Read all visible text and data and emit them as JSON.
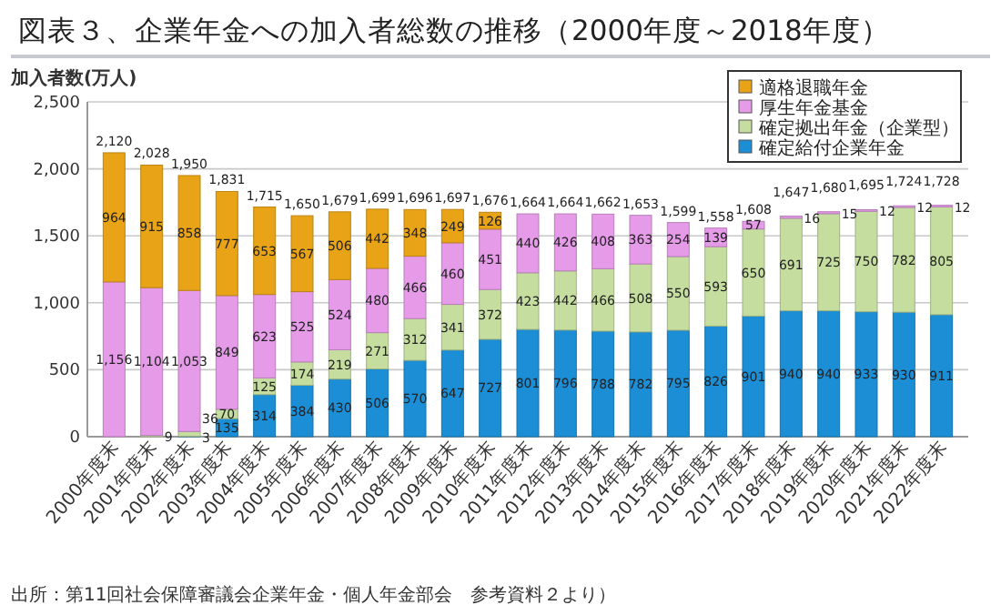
{
  "chart_data": {
    "type": "bar",
    "title": "図表３、企業年金への加入者総数の推移（2000年度～2018年度）",
    "ylabel": "加入者数(万人)",
    "annotations": [
      "出所：第11回社会保障審議会企業年金・個人年金部会　参考資料２より）"
    ],
    "categories": [
      "2000年度末",
      "2001年度末",
      "2002年度末",
      "2003年度末",
      "2004年度末",
      "2005年度末",
      "2006年度末",
      "2007年度末",
      "2008年度末",
      "2009年度末",
      "2010年度末",
      "2011年度末",
      "2012年度末",
      "2013年度末",
      "2014年度末",
      "2015年度末",
      "2016年度末",
      "2017年度末",
      "2018年度末",
      "2019年度末",
      "2020年度末",
      "2021年度末",
      "2022年度末"
    ],
    "stacked": true,
    "grid": "y",
    "legend": "top right",
    "ylim": [
      0,
      2500
    ],
    "yticks": [
      0,
      {
        "value": 500,
        "label": "500"
      },
      {
        "value": 1000,
        "label": "1,000"
      },
      {
        "value": 1500,
        "label": "1,500"
      },
      {
        "value": 2000,
        "label": "2,000"
      },
      {
        "value": 2500,
        "label": "2,500"
      }
    ],
    "series": [
      {
        "name": "確定給付企業年金",
        "color": "#1b8ed6",
        "values": [
          null,
          null,
          3,
          135,
          314,
          384,
          430,
          506,
          570,
          647,
          727,
          801,
          796,
          788,
          782,
          795,
          826,
          901,
          940,
          940,
          933,
          930,
          911
        ],
        "value_labels": [
          null,
          null,
          "3",
          "135",
          "314",
          "384",
          "430",
          "506",
          "570",
          "647",
          "727",
          "801",
          "796",
          "788",
          "782",
          "795",
          "826",
          "901",
          "940",
          "940",
          "933",
          "930",
          "911"
        ]
      },
      {
        "name": "確定拠出年金（企業型）",
        "color": "#c5dea0",
        "values": [
          null,
          9,
          36,
          70,
          125,
          174,
          219,
          271,
          312,
          341,
          372,
          423,
          442,
          466,
          508,
          550,
          593,
          650,
          691,
          725,
          750,
          782,
          805
        ],
        "value_labels": [
          null,
          "9",
          "36",
          "70",
          "125",
          "174",
          "219",
          "271",
          "312",
          "341",
          "372",
          "423",
          "442",
          "466",
          "508",
          "550",
          "593",
          "650",
          "691",
          "725",
          "750",
          "782",
          "805"
        ]
      },
      {
        "name": "厚生年金基金",
        "color": "#e59be8",
        "values": [
          1156,
          1104,
          1053,
          849,
          623,
          525,
          524,
          480,
          466,
          460,
          451,
          440,
          426,
          408,
          363,
          254,
          139,
          57,
          16,
          15,
          12,
          12,
          12
        ],
        "value_labels": [
          "1,156",
          "1,104",
          "1,053",
          "849",
          "623",
          "525",
          "524",
          "480",
          "466",
          "460",
          "451",
          "440",
          "426",
          "408",
          "363",
          "254",
          "139",
          "57",
          "16",
          "15",
          "12",
          "12",
          "12"
        ]
      },
      {
        "name": "適格退職年金",
        "color": "#e8a317",
        "values": [
          964,
          915,
          858,
          777,
          653,
          567,
          506,
          442,
          348,
          249,
          126,
          null,
          null,
          null,
          null,
          null,
          null,
          null,
          null,
          null,
          null,
          null,
          null
        ],
        "value_labels": [
          "964",
          "915",
          "858",
          "777",
          "653",
          "567",
          "506",
          "442",
          "348",
          "249",
          "126",
          null,
          null,
          null,
          null,
          null,
          null,
          null,
          null,
          null,
          null,
          null,
          null
        ]
      }
    ],
    "totals": [
      "2,120",
      "2,028",
      "1,950",
      "1,831",
      "1,715",
      "1,650",
      "1,679",
      "1,699",
      "1,696",
      "1,697",
      "1,676",
      "1,664",
      "1,664",
      "1,662",
      "1,653",
      "1,599",
      "1,558",
      "1,608",
      "1,647",
      "1,680",
      "1,695",
      "1,724",
      "1,728"
    ]
  }
}
